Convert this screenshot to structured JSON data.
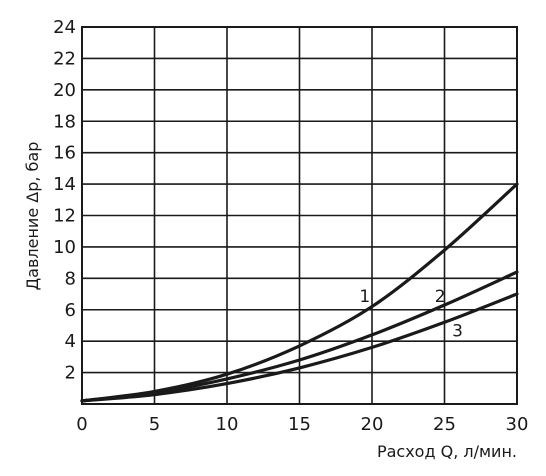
{
  "chart_data": {
    "type": "line",
    "xlabel": "Расход Q, л/мин.",
    "ylabel": "Давление Δр, бар",
    "xlim": [
      0,
      30
    ],
    "ylim": [
      0,
      24
    ],
    "x_ticks": [
      0,
      5,
      10,
      15,
      20,
      25,
      30
    ],
    "y_ticks": [
      2,
      4,
      6,
      8,
      10,
      12,
      14,
      16,
      18,
      20,
      22,
      24
    ],
    "grid": true,
    "series": [
      {
        "name": "1",
        "x": [
          0,
          5,
          10,
          15,
          20,
          25,
          30
        ],
        "y": [
          0.2,
          0.8,
          1.9,
          3.7,
          6.2,
          9.8,
          14.0
        ]
      },
      {
        "name": "2",
        "x": [
          0,
          5,
          10,
          15,
          20,
          25,
          30
        ],
        "y": [
          0.2,
          0.7,
          1.6,
          2.8,
          4.4,
          6.3,
          8.4
        ]
      },
      {
        "name": "3",
        "x": [
          0,
          5,
          10,
          15,
          20,
          25,
          30
        ],
        "y": [
          0.2,
          0.6,
          1.3,
          2.3,
          3.6,
          5.2,
          7.0
        ]
      }
    ],
    "curve_labels": [
      {
        "text": "1",
        "x": 19.5,
        "y": 6.5
      },
      {
        "text": "2",
        "x": 24.7,
        "y": 6.5
      },
      {
        "text": "3",
        "x": 25.9,
        "y": 4.3
      }
    ]
  }
}
